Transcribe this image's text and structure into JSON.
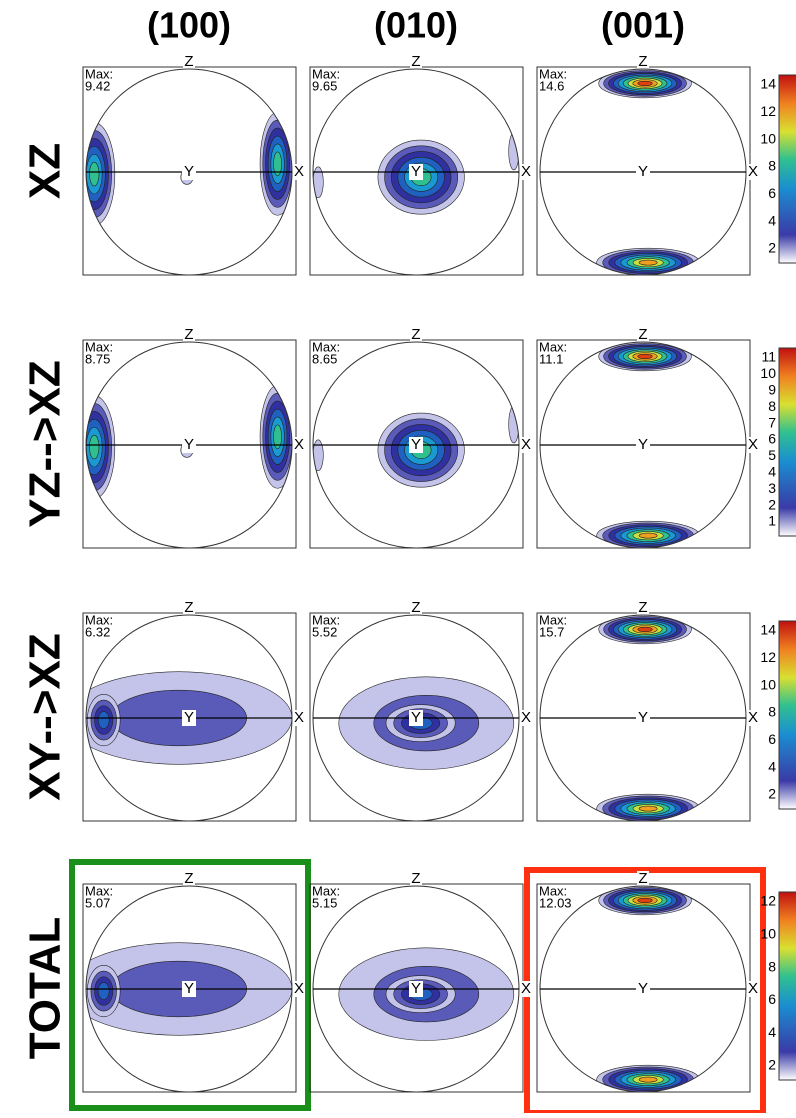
{
  "columns": [
    "(100)",
    "(010)",
    "(001)"
  ],
  "axis_labels": {
    "z": "Z",
    "x": "X",
    "y": "Y"
  },
  "max_label": "Max:",
  "rows": [
    {
      "label": "XZ",
      "max": [
        9.42,
        9.65,
        14.6
      ],
      "colorbar": [
        14,
        12,
        10,
        8,
        6,
        4,
        2
      ]
    },
    {
      "label": "YZ-->XZ",
      "max": [
        8.75,
        8.65,
        11.1
      ],
      "colorbar": [
        11,
        10,
        9,
        8,
        7,
        6,
        5,
        4,
        3,
        2,
        1
      ]
    },
    {
      "label": "XY-->XZ",
      "max": [
        6.32,
        5.52,
        15.7
      ],
      "colorbar": [
        14,
        12,
        10,
        8,
        6,
        4,
        2
      ]
    },
    {
      "label": "TOTAL",
      "max": [
        5.07,
        5.15,
        12.03
      ],
      "colorbar": [
        12,
        10,
        8,
        6,
        4,
        2
      ]
    }
  ]
}
